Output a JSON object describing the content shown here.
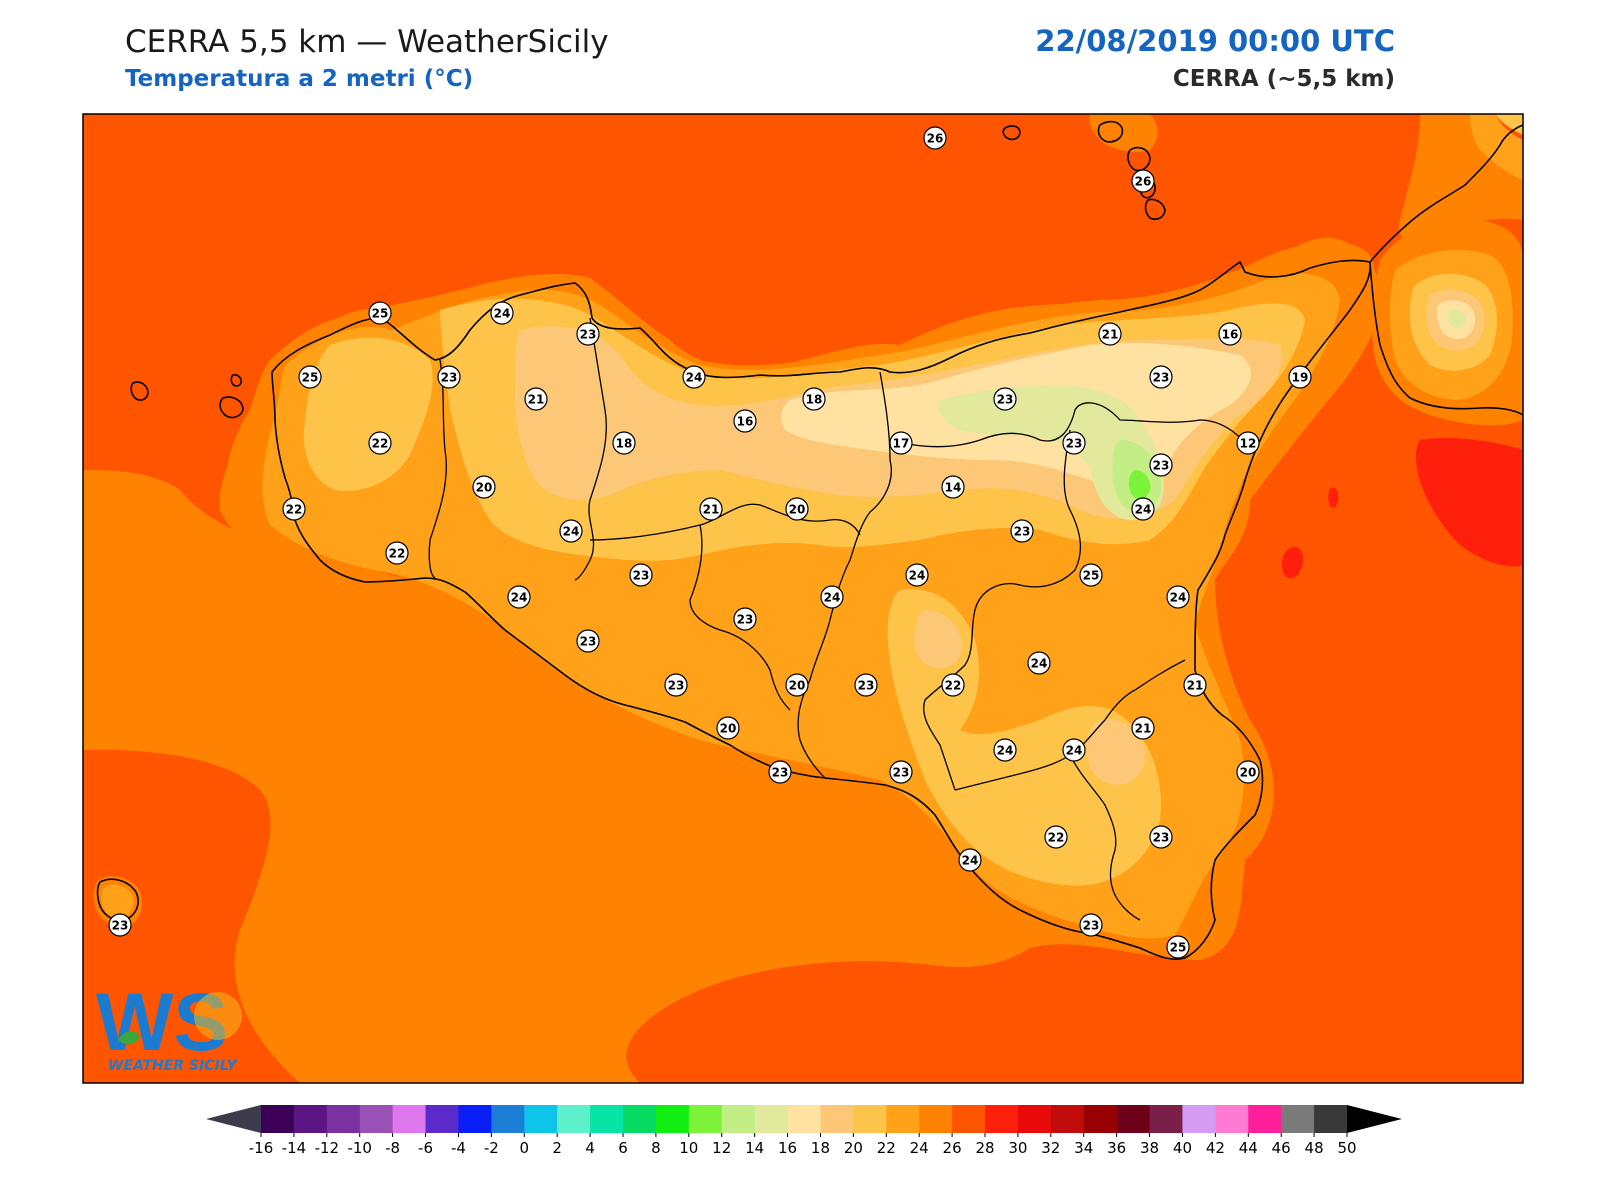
{
  "header": {
    "title": "CERRA 5,5 km — WeatherSicily",
    "subtitle": "Temperatura a 2 metri (°C)",
    "datetime": "22/08/2019 00:00 UTC",
    "model_label": "CERRA (~5,5 km)"
  },
  "map": {
    "region": "Sicily",
    "units": "°C"
  },
  "stations": [
    {
      "value": 26
    },
    {
      "value": 26
    },
    {
      "value": 25
    },
    {
      "value": 24
    },
    {
      "value": 23
    },
    {
      "value": 25
    },
    {
      "value": 23
    },
    {
      "value": 21
    },
    {
      "value": 24
    },
    {
      "value": 18
    },
    {
      "value": 21
    },
    {
      "value": 16
    },
    {
      "value": 23
    },
    {
      "value": 23
    },
    {
      "value": 19
    },
    {
      "value": 22
    },
    {
      "value": 18
    },
    {
      "value": 16
    },
    {
      "value": 17
    },
    {
      "value": 23
    },
    {
      "value": 12
    },
    {
      "value": 23
    },
    {
      "value": 20
    },
    {
      "value": 14
    },
    {
      "value": 24
    },
    {
      "value": 22
    },
    {
      "value": 21
    },
    {
      "value": 20
    },
    {
      "value": 24
    },
    {
      "value": 23
    },
    {
      "value": 22
    },
    {
      "value": 23
    },
    {
      "value": 24
    },
    {
      "value": 25
    },
    {
      "value": 24
    },
    {
      "value": 24
    },
    {
      "value": 23
    },
    {
      "value": 24
    },
    {
      "value": 23
    },
    {
      "value": 24
    },
    {
      "value": 23
    },
    {
      "value": 20
    },
    {
      "value": 23
    },
    {
      "value": 22
    },
    {
      "value": 21
    },
    {
      "value": 20
    },
    {
      "value": 21
    },
    {
      "value": 24
    },
    {
      "value": 24
    },
    {
      "value": 23
    },
    {
      "value": 23
    },
    {
      "value": 20
    },
    {
      "value": 22
    },
    {
      "value": 23
    },
    {
      "value": 24
    },
    {
      "value": 23
    },
    {
      "value": 25
    },
    {
      "value": 23
    }
  ],
  "colorbar": {
    "ticks": [
      "-16",
      "-14",
      "-12",
      "-10",
      "-8",
      "-6",
      "-4",
      "-2",
      "0",
      "2",
      "4",
      "6",
      "8",
      "10",
      "12",
      "14",
      "16",
      "18",
      "20",
      "22",
      "24",
      "26",
      "28",
      "30",
      "32",
      "34",
      "36",
      "38",
      "40",
      "42",
      "44",
      "46",
      "48",
      "50"
    ],
    "colors": [
      "#3d0057",
      "#5c1683",
      "#7a32a3",
      "#9950b7",
      "#df77ee",
      "#5a2acb",
      "#0a1ef7",
      "#1c7ed6",
      "#0dc5e8",
      "#5ef0cd",
      "#08e4a6",
      "#08db63",
      "#11ee11",
      "#7df23a",
      "#c3ed85",
      "#e2e89c",
      "#ffe2a1",
      "#fcc878",
      "#fdc449",
      "#ffa219",
      "#ff8300",
      "#ff5400",
      "#ff1f0c",
      "#e80a0a",
      "#c20c0c",
      "#990000",
      "#6e0019",
      "#7a1f48",
      "#d69bf5",
      "#ff7ad2",
      "#ff1e9b",
      "#7a7a7a",
      "#393939"
    ],
    "under_color": "#3b3b4c",
    "over_color": "#000000"
  },
  "logo": {
    "mark": "WS",
    "text": "WEATHER SICILY"
  },
  "colors": {
    "sea_26": "#ff5400",
    "land_24": "#ff8300",
    "land_22": "#ffa219",
    "land_20": "#fdc449",
    "land_18": "#fcc878",
    "land_16": "#ffe2a1",
    "land_14": "#e2e89c",
    "land_12": "#c3ed85",
    "warm_28": "#ff1f0c"
  }
}
